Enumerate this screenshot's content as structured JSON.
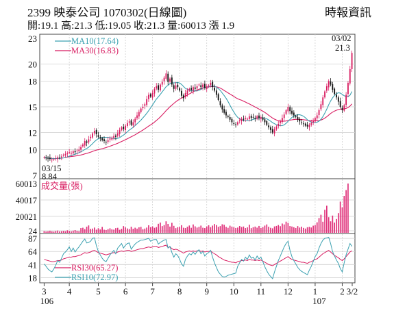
{
  "header": {
    "title": "2399  映泰公司 1070302(日線圖)",
    "source": "時報資訊",
    "summary": "開:19.1 高:21.3 低:19.05 收:21.3 量:60013 漲 1.9"
  },
  "colors": {
    "up": "#d81b60",
    "down": "#111111",
    "ma10": "#3aa0b0",
    "ma30": "#d81b60",
    "volume": "#e0307a",
    "rsi30": "#d81b60",
    "rsi10": "#3aa0b0",
    "grid": "#cfcfcf"
  },
  "chart_data": [
    {
      "type": "candlestick",
      "legend": [
        {
          "name": "MA10",
          "value": "17.64",
          "label": "MA10(17.64)",
          "color": "#3aa0b0"
        },
        {
          "name": "MA30",
          "value": "16.83",
          "label": "MA30(16.83)",
          "color": "#d81b60"
        }
      ],
      "y_ticks": [
        23,
        20,
        18,
        15,
        12,
        10,
        7
      ],
      "ylim": [
        7,
        23
      ],
      "annotations": {
        "high": {
          "date": "03/02",
          "value": "21.3"
        },
        "low": {
          "date": "03/15",
          "value": "8.84"
        }
      },
      "closes": [
        9.1,
        9.0,
        8.95,
        8.9,
        8.84,
        8.9,
        9.0,
        9.1,
        9.05,
        9.2,
        9.4,
        9.5,
        9.6,
        9.7,
        9.6,
        9.8,
        9.7,
        9.9,
        10.0,
        10.3,
        10.6,
        11.0,
        10.8,
        11.2,
        11.5,
        11.9,
        12.2,
        11.8,
        11.5,
        11.3,
        11.1,
        11.0,
        10.9,
        11.1,
        11.3,
        11.4,
        11.6,
        11.5,
        11.9,
        12.3,
        12.6,
        12.4,
        12.8,
        13.1,
        13.3,
        12.9,
        13.2,
        13.6,
        14.0,
        14.4,
        14.8,
        15.0,
        15.3,
        15.9,
        16.4,
        16.2,
        16.6,
        17.1,
        17.4,
        17.0,
        17.6,
        17.9,
        18.4,
        18.9,
        17.9,
        18.3,
        17.6,
        17.1,
        17.5,
        17.3,
        16.9,
        16.3,
        16.0,
        16.6,
        16.9,
        17.1,
        17.0,
        17.3,
        17.1,
        17.4,
        17.6,
        17.3,
        17.6,
        17.2,
        17.4,
        17.5,
        17.8,
        17.3,
        16.9,
        16.4,
        15.8,
        15.2,
        14.7,
        14.3,
        14.0,
        13.8,
        13.5,
        13.2,
        13.0,
        12.9,
        13.2,
        13.4,
        13.6,
        13.5,
        13.7,
        13.6,
        13.9,
        13.7,
        13.8,
        13.6,
        13.9,
        13.7,
        13.8,
        13.5,
        13.2,
        12.9,
        12.6,
        12.3,
        12.0,
        12.4,
        12.7,
        13.0,
        13.3,
        13.7,
        14.1,
        14.6,
        15.0,
        14.5,
        14.2,
        14.0,
        13.8,
        13.5,
        13.3,
        13.1,
        13.0,
        12.8,
        12.7,
        12.9,
        13.1,
        13.4,
        13.7,
        14.0,
        14.6,
        15.3,
        16.1,
        16.8,
        17.4,
        18.0,
        17.6,
        17.0,
        16.5,
        16.1,
        15.6,
        15.0,
        14.6,
        15.2,
        16.4,
        17.8,
        19.4,
        21.3
      ]
    },
    {
      "type": "bar",
      "label": "成交量(張)",
      "y_ticks": [
        60013,
        40017,
        20021,
        24
      ],
      "ylim": [
        0,
        60013
      ],
      "values": [
        2100,
        1600,
        1900,
        2600,
        1800,
        1500,
        2300,
        2800,
        1700,
        2000,
        2400,
        1900,
        3100,
        2200,
        1800,
        2700,
        3300,
        2500,
        2000,
        5800,
        6200,
        4500,
        7500,
        9000,
        4800,
        5200,
        6400,
        3900,
        5600,
        4100,
        7200,
        3800,
        3400,
        4500,
        5500,
        4300,
        3900,
        5700,
        6100,
        3700,
        4900,
        8200,
        6600,
        5300,
        4600,
        7400,
        5000,
        6200,
        5100,
        6700,
        7300,
        4400,
        5200,
        6400,
        9200,
        6900,
        7800,
        6100,
        7000,
        11000,
        12500,
        8200,
        9400,
        14000,
        10800,
        7600,
        12200,
        8500,
        5700,
        6800,
        7200,
        9300,
        6200,
        5800,
        7400,
        8900,
        6100,
        10200,
        7900,
        6400,
        7300,
        8800,
        6200,
        5800,
        7700,
        9200,
        6900,
        8800,
        10700,
        9400,
        7300,
        8200,
        10400,
        9800,
        7300,
        6100,
        8700,
        7600,
        6800,
        5900,
        6400,
        8300,
        7100,
        7700,
        5800,
        6600,
        9900,
        5700,
        6800,
        7600,
        6300,
        8400,
        5900,
        7000,
        8800,
        10200,
        7400,
        6100,
        5500,
        7800,
        8400,
        9500,
        8100,
        11300,
        10200,
        13600,
        12100,
        8300,
        7700,
        6800,
        5900,
        8200,
        6400,
        7500,
        6000,
        5200,
        6800,
        7300,
        6500,
        8700,
        9400,
        12800,
        18000,
        22000,
        13500,
        28000,
        33000,
        19000,
        14000,
        21000,
        12500,
        16800,
        24000,
        38000,
        31000,
        45000,
        52000,
        60013
      ]
    },
    {
      "type": "line",
      "y_ticks": [
        87,
        64,
        41,
        18
      ],
      "ylim": [
        10,
        92
      ],
      "series": [
        {
          "name": "RSI30",
          "value": "65.27",
          "label": "RSI30(65.27)",
          "color": "#d81b60",
          "values": [
            50,
            49,
            48,
            47,
            46,
            46,
            47,
            48,
            48,
            49,
            51,
            52,
            53,
            54,
            54,
            55,
            55,
            56,
            57,
            58,
            60,
            62,
            61,
            62,
            63,
            65,
            66,
            64,
            62,
            61,
            60,
            59,
            58,
            59,
            60,
            61,
            62,
            61,
            63,
            64,
            65,
            64,
            65,
            66,
            66,
            64,
            65,
            66,
            67,
            68,
            69,
            69,
            70,
            71,
            72,
            71,
            72,
            73,
            73,
            71,
            72,
            73,
            74,
            75,
            71,
            72,
            69,
            67,
            68,
            67,
            65,
            63,
            61,
            63,
            64,
            65,
            64,
            65,
            64,
            65,
            66,
            64,
            65,
            63,
            64,
            64,
            65,
            62,
            60,
            58,
            55,
            53,
            51,
            49,
            48,
            47,
            46,
            45,
            45,
            44,
            46,
            47,
            48,
            48,
            49,
            48,
            50,
            49,
            49,
            48,
            49,
            48,
            49,
            47,
            45,
            43,
            41,
            40,
            39,
            41,
            43,
            45,
            47,
            49,
            51,
            53,
            55,
            52,
            50,
            49,
            48,
            47,
            46,
            45,
            45,
            44,
            43,
            45,
            46,
            48,
            50,
            51,
            54,
            57,
            60,
            62,
            64,
            66,
            63,
            60,
            57,
            55,
            53,
            50,
            48,
            51,
            55,
            59,
            63,
            65.27
          ]
        },
        {
          "name": "RSI10",
          "value": "72.97",
          "label": "RSI10(72.97)",
          "color": "#3aa0b0",
          "values": [
            42,
            38,
            33,
            30,
            28,
            33,
            40,
            48,
            45,
            52,
            60,
            63,
            67,
            72,
            64,
            70,
            63,
            68,
            72,
            77,
            82,
            86,
            79,
            80,
            82,
            87,
            88,
            74,
            64,
            58,
            52,
            48,
            46,
            52,
            58,
            62,
            66,
            60,
            70,
            74,
            78,
            70,
            75,
            78,
            79,
            68,
            73,
            77,
            80,
            82,
            84,
            84,
            85,
            86,
            87,
            82,
            84,
            85,
            85,
            77,
            80,
            82,
            84,
            85,
            70,
            73,
            62,
            54,
            60,
            57,
            50,
            42,
            38,
            50,
            56,
            60,
            58,
            63,
            59,
            64,
            67,
            60,
            64,
            56,
            60,
            62,
            66,
            54,
            44,
            36,
            28,
            24,
            20,
            19,
            20,
            22,
            23,
            24,
            25,
            26,
            38,
            44,
            50,
            47,
            54,
            50,
            58,
            52,
            54,
            49,
            56,
            51,
            54,
            46,
            37,
            30,
            24,
            20,
            16,
            28,
            38,
            48,
            56,
            64,
            72,
            78,
            82,
            66,
            55,
            48,
            42,
            36,
            32,
            29,
            27,
            25,
            23,
            31,
            38,
            46,
            55,
            60,
            70,
            78,
            84,
            87,
            88,
            89,
            78,
            64,
            56,
            49,
            43,
            34,
            28,
            44,
            58,
            68,
            78,
            72.97
          ]
        }
      ]
    }
  ],
  "x_axis": {
    "ticks": [
      "3",
      "4",
      "5",
      "6",
      "7",
      "8",
      "9",
      "10",
      "11",
      "12",
      "1",
      "2",
      "3/2"
    ],
    "year_labels": [
      "106",
      "107"
    ]
  }
}
